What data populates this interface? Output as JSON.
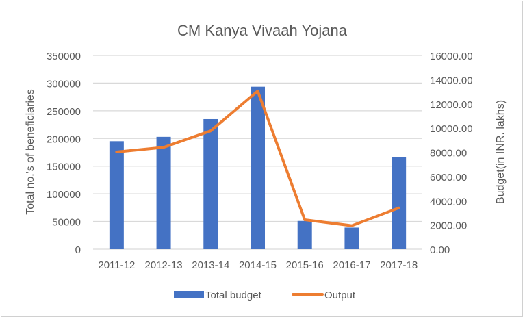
{
  "chart_data": {
    "type": "bar",
    "title": "CM Kanya Vivaah Yojana",
    "categories": [
      "2011-12",
      "2012-13",
      "2013-14",
      "2014-15",
      "2015-16",
      "2016-17",
      "2017-18"
    ],
    "ylabel": "Total no.'s of beneficiaries",
    "y2label": "Budget(in INR. lakhs)",
    "ylim": [
      0,
      350000
    ],
    "y2lim": [
      0,
      16000
    ],
    "yticks": [
      "0",
      "50000",
      "100000",
      "150000",
      "200000",
      "250000",
      "300000",
      "350000"
    ],
    "y2ticks": [
      "0.00",
      "2000.00",
      "4000.00",
      "6000.00",
      "8000.00",
      "10000.00",
      "12000.00",
      "14000.00",
      "16000.00"
    ],
    "grid": true,
    "legend_position": "bottom",
    "series": [
      {
        "name": "Total budget",
        "type": "bar",
        "axis": "left",
        "color": "#4472C4",
        "values": [
          195000,
          203000,
          235000,
          293500,
          51000,
          39000,
          166000
        ]
      },
      {
        "name": "Output",
        "type": "line",
        "axis": "right",
        "color": "#ED7D31",
        "values": [
          8030,
          8410,
          9770,
          13060,
          2430,
          1940,
          3410
        ]
      }
    ]
  }
}
